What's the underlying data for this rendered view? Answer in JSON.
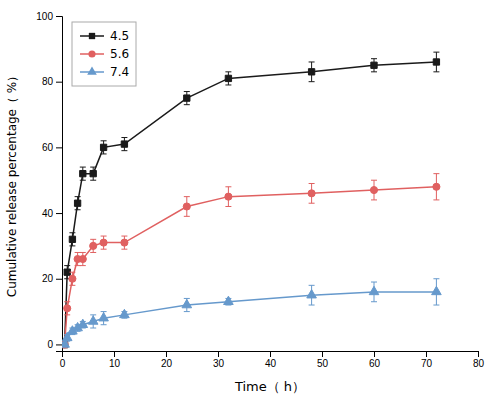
{
  "chart_data": {
    "type": "line",
    "x_label": "Time（ h）",
    "y_label": "Cumulative release percentage（ %）",
    "x": [
      0.5,
      1,
      2,
      3,
      4,
      6,
      8,
      12,
      24,
      32,
      48,
      60,
      72
    ],
    "series": [
      {
        "name": "4.5",
        "color": "#1a1a1a",
        "marker": "square",
        "line_style": "solid",
        "values": [
          0,
          22,
          32,
          43,
          52,
          52,
          60,
          61,
          75,
          81,
          83,
          85,
          86
        ],
        "errors": [
          1,
          2,
          2,
          2,
          2,
          2,
          2,
          2,
          2,
          2,
          3,
          2,
          3
        ]
      },
      {
        "name": "5.6",
        "color": "#e06060",
        "marker": "circle",
        "line_style": "solid",
        "values": [
          0,
          11,
          20,
          26,
          26,
          30,
          31,
          31,
          42,
          45,
          46,
          47,
          48
        ],
        "errors": [
          1,
          2,
          2,
          2,
          2,
          2,
          2,
          2,
          3,
          3,
          3,
          3,
          4
        ]
      },
      {
        "name": "7.4",
        "color": "#6699cc",
        "marker": "triangle",
        "line_style": "solid",
        "values": [
          0,
          2,
          4,
          5,
          6,
          7,
          8,
          9,
          12,
          13,
          15,
          16,
          16
        ],
        "errors": [
          0.5,
          1,
          1,
          1,
          1,
          2,
          2,
          1,
          2,
          1,
          3,
          3,
          4
        ]
      }
    ],
    "xlim": [
      0,
      80
    ],
    "ylim": [
      -2,
      100
    ],
    "xticks": [
      0,
      10,
      20,
      30,
      40,
      50,
      60,
      70,
      80
    ],
    "yticks": [
      0,
      20,
      40,
      60,
      80,
      100
    ],
    "grid": false,
    "legend": "upper left"
  }
}
